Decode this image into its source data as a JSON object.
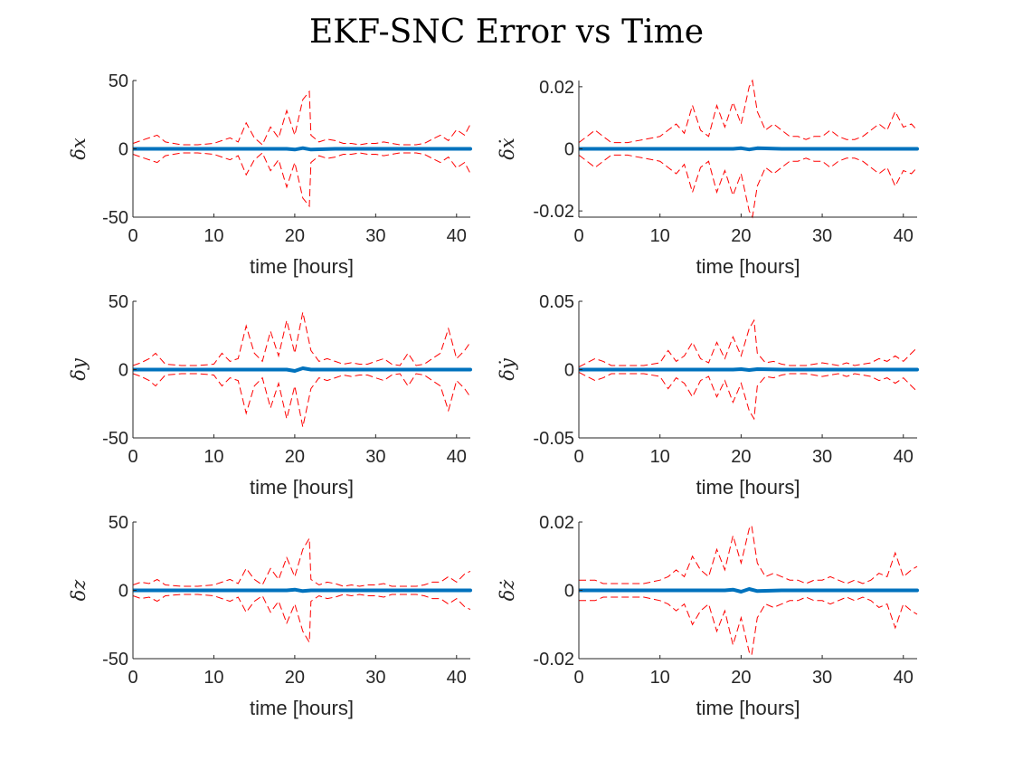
{
  "figure": {
    "title": "EKF-SNC Error vs Time",
    "background": "#ffffff"
  },
  "colors": {
    "error": "#0072bd",
    "bound": "#ff0000"
  },
  "chart_data": [
    {
      "type": "line",
      "panel": "row-1-left",
      "xlabel": "time [hours]",
      "ylabel": "δx",
      "xlim": [
        0,
        41.7
      ],
      "ylim": [
        -50,
        50
      ],
      "xticks": [
        0,
        10,
        20,
        30,
        40
      ],
      "yticks": [
        50,
        0,
        -50
      ],
      "ytick_labels": [
        "50",
        "0",
        "-50"
      ],
      "grid": false,
      "error": {
        "x": [
          0,
          5,
          10,
          15,
          19,
          20,
          21,
          22,
          25,
          30,
          35,
          41.7
        ],
        "y": [
          0,
          0,
          0,
          0,
          0,
          -0.5,
          0.5,
          -0.5,
          0,
          0,
          0,
          0
        ]
      },
      "bound": {
        "x": [
          0,
          1,
          2,
          3,
          4,
          6,
          8,
          10,
          11,
          12,
          13,
          14,
          15,
          16,
          17,
          18,
          19,
          20,
          21,
          21.8,
          22,
          23,
          24,
          25,
          26,
          27,
          28,
          29,
          30,
          31,
          32,
          33,
          34,
          35,
          36,
          37,
          38,
          39,
          40,
          41,
          41.7
        ],
        "y": [
          4,
          6,
          8,
          10,
          5,
          3,
          3,
          4,
          6,
          8,
          5,
          19,
          8,
          3,
          16,
          8,
          28,
          10,
          36,
          42,
          10,
          5,
          7,
          6,
          4,
          4,
          3,
          4,
          4,
          5,
          4,
          3,
          3,
          3,
          4,
          7,
          10,
          6,
          14,
          10,
          18
        ]
      }
    },
    {
      "type": "line",
      "panel": "row-1-right",
      "xlabel": "time [hours]",
      "ylabel": "δẋ",
      "xlim": [
        0,
        41.7
      ],
      "ylim": [
        -0.022,
        0.022
      ],
      "xticks": [
        0,
        10,
        20,
        30,
        40
      ],
      "yticks": [
        0.02,
        0,
        -0.02
      ],
      "ytick_labels": [
        "0.02",
        "0",
        "-0.02"
      ],
      "grid": false,
      "error": {
        "x": [
          0,
          5,
          10,
          15,
          19,
          20,
          21,
          22,
          25,
          30,
          35,
          41.7
        ],
        "y": [
          0,
          0,
          0,
          0,
          0,
          0.0002,
          -0.0002,
          0.0002,
          0,
          0,
          0,
          0
        ]
      },
      "bound": {
        "x": [
          0,
          1,
          2,
          3,
          4,
          6,
          8,
          10,
          11,
          12,
          13,
          14,
          15,
          16,
          17,
          18,
          19,
          20,
          21,
          21.4,
          22,
          23,
          24,
          25,
          26,
          27,
          28,
          29,
          30,
          31,
          32,
          33,
          34,
          35,
          36,
          37,
          38,
          39,
          40,
          41,
          41.7
        ],
        "y": [
          0.002,
          0.004,
          0.006,
          0.004,
          0.002,
          0.002,
          0.003,
          0.004,
          0.006,
          0.008,
          0.005,
          0.014,
          0.006,
          0.004,
          0.014,
          0.007,
          0.015,
          0.008,
          0.02,
          0.022,
          0.012,
          0.006,
          0.008,
          0.006,
          0.004,
          0.004,
          0.003,
          0.004,
          0.004,
          0.006,
          0.004,
          0.003,
          0.003,
          0.004,
          0.006,
          0.008,
          0.006,
          0.012,
          0.007,
          0.008,
          0.006
        ]
      }
    },
    {
      "type": "line",
      "panel": "row-2-left",
      "xlabel": "time [hours]",
      "ylabel": "δy",
      "xlim": [
        0,
        41.7
      ],
      "ylim": [
        -50,
        50
      ],
      "xticks": [
        0,
        10,
        20,
        30,
        40
      ],
      "yticks": [
        50,
        0,
        -50
      ],
      "ytick_labels": [
        "50",
        "0",
        "-50"
      ],
      "grid": false,
      "error": {
        "x": [
          0,
          5,
          10,
          15,
          19,
          20,
          21,
          22,
          25,
          30,
          35,
          41.7
        ],
        "y": [
          0,
          0,
          0,
          0,
          0,
          -1,
          1,
          0,
          0,
          0,
          0,
          0
        ]
      },
      "bound": {
        "x": [
          0,
          1,
          2,
          2.8,
          4,
          6,
          8,
          10,
          11,
          12,
          13,
          14,
          15,
          16,
          17,
          18,
          19,
          20,
          21,
          22,
          23,
          24,
          25,
          26,
          27,
          28,
          29,
          30,
          31,
          32,
          33,
          34,
          35,
          36,
          37,
          38,
          39,
          40,
          41,
          41.7
        ],
        "y": [
          3,
          5,
          8,
          12,
          4,
          3,
          3,
          4,
          12,
          6,
          8,
          32,
          12,
          6,
          28,
          10,
          36,
          12,
          42,
          14,
          6,
          8,
          6,
          4,
          5,
          4,
          4,
          6,
          8,
          4,
          3,
          12,
          3,
          4,
          8,
          12,
          30,
          8,
          14,
          20
        ]
      }
    },
    {
      "type": "line",
      "panel": "row-2-right",
      "xlabel": "time [hours]",
      "ylabel": "δẏ",
      "xlim": [
        0,
        41.7
      ],
      "ylim": [
        -0.05,
        0.05
      ],
      "xticks": [
        0,
        10,
        20,
        30,
        40
      ],
      "yticks": [
        0.05,
        0,
        -0.05
      ],
      "ytick_labels": [
        "0.05",
        "0",
        "-0.05"
      ],
      "grid": false,
      "error": {
        "x": [
          0,
          5,
          10,
          15,
          19,
          20,
          21,
          22,
          25,
          30,
          35,
          41.7
        ],
        "y": [
          0,
          0,
          0,
          0,
          0,
          0.0003,
          -0.0003,
          0.0003,
          0,
          0,
          0,
          0
        ]
      },
      "bound": {
        "x": [
          0,
          1,
          2,
          3,
          4,
          6,
          8,
          10,
          11,
          12,
          13,
          14,
          15,
          16,
          17,
          18,
          19,
          20,
          21,
          21.6,
          22,
          23,
          24,
          25,
          26,
          27,
          28,
          29,
          30,
          31,
          32,
          33,
          34,
          35,
          36,
          37,
          38,
          39,
          40,
          41,
          41.7
        ],
        "y": [
          0.002,
          0.005,
          0.008,
          0.006,
          0.003,
          0.003,
          0.003,
          0.005,
          0.014,
          0.006,
          0.01,
          0.02,
          0.008,
          0.005,
          0.02,
          0.008,
          0.024,
          0.01,
          0.03,
          0.036,
          0.012,
          0.005,
          0.006,
          0.004,
          0.003,
          0.003,
          0.003,
          0.004,
          0.005,
          0.004,
          0.003,
          0.005,
          0.003,
          0.004,
          0.005,
          0.008,
          0.006,
          0.01,
          0.006,
          0.012,
          0.016
        ]
      }
    },
    {
      "type": "line",
      "panel": "row-3-left",
      "xlabel": "time [hours]",
      "ylabel": "δz",
      "xlim": [
        0,
        41.7
      ],
      "ylim": [
        -50,
        50
      ],
      "xticks": [
        0,
        10,
        20,
        30,
        40
      ],
      "yticks": [
        50,
        0,
        -50
      ],
      "ytick_labels": [
        "50",
        "0",
        "-50"
      ],
      "grid": false,
      "error": {
        "x": [
          0,
          5,
          10,
          15,
          19,
          20,
          21,
          22,
          25,
          30,
          35,
          41.7
        ],
        "y": [
          0,
          0,
          0,
          0,
          0,
          0.5,
          -0.5,
          0,
          0,
          0,
          0,
          0
        ]
      },
      "bound": {
        "x": [
          0,
          1,
          2,
          3,
          4,
          6,
          8,
          10,
          11,
          12,
          13,
          14,
          15,
          16,
          17,
          18,
          19,
          20,
          21,
          21.8,
          22,
          23,
          24,
          25,
          26,
          27,
          28,
          29,
          30,
          31,
          32,
          33,
          34,
          35,
          36,
          37,
          38,
          39,
          40,
          41,
          41.7
        ],
        "y": [
          4,
          6,
          5,
          8,
          4,
          3,
          3,
          4,
          6,
          8,
          5,
          16,
          8,
          4,
          16,
          8,
          24,
          10,
          30,
          38,
          8,
          4,
          6,
          5,
          3,
          4,
          3,
          4,
          4,
          5,
          3,
          3,
          3,
          3,
          4,
          6,
          6,
          10,
          6,
          12,
          14
        ]
      }
    },
    {
      "type": "line",
      "panel": "row-3-right",
      "xlabel": "time [hours]",
      "ylabel": "δż",
      "xlim": [
        0,
        41.7
      ],
      "ylim": [
        -0.02,
        0.02
      ],
      "xticks": [
        0,
        10,
        20,
        30,
        40
      ],
      "yticks": [
        0.02,
        0,
        -0.02
      ],
      "ytick_labels": [
        "0.02",
        "0",
        "-0.02"
      ],
      "grid": false,
      "error": {
        "x": [
          0,
          5,
          10,
          15,
          18,
          19,
          20,
          21,
          22,
          25,
          30,
          35,
          41.7
        ],
        "y": [
          0,
          0,
          0,
          0,
          0,
          0.0002,
          -0.0004,
          0.0004,
          -0.0002,
          0,
          0,
          0,
          0
        ]
      },
      "bound": {
        "x": [
          0,
          1,
          2,
          3,
          4,
          6,
          8,
          10,
          11,
          12,
          13,
          14,
          15,
          16,
          17,
          18,
          19,
          20,
          21,
          21.3,
          22,
          23,
          24,
          25,
          26,
          27,
          28,
          29,
          30,
          31,
          32,
          33,
          34,
          35,
          36,
          37,
          38,
          39,
          40,
          41,
          41.7
        ],
        "y": [
          0.003,
          0.003,
          0.003,
          0.002,
          0.002,
          0.002,
          0.002,
          0.003,
          0.004,
          0.006,
          0.004,
          0.01,
          0.006,
          0.004,
          0.012,
          0.006,
          0.016,
          0.008,
          0.018,
          0.019,
          0.008,
          0.004,
          0.005,
          0.004,
          0.003,
          0.003,
          0.002,
          0.003,
          0.003,
          0.004,
          0.003,
          0.002,
          0.003,
          0.002,
          0.003,
          0.005,
          0.004,
          0.011,
          0.004,
          0.006,
          0.007
        ]
      }
    }
  ]
}
